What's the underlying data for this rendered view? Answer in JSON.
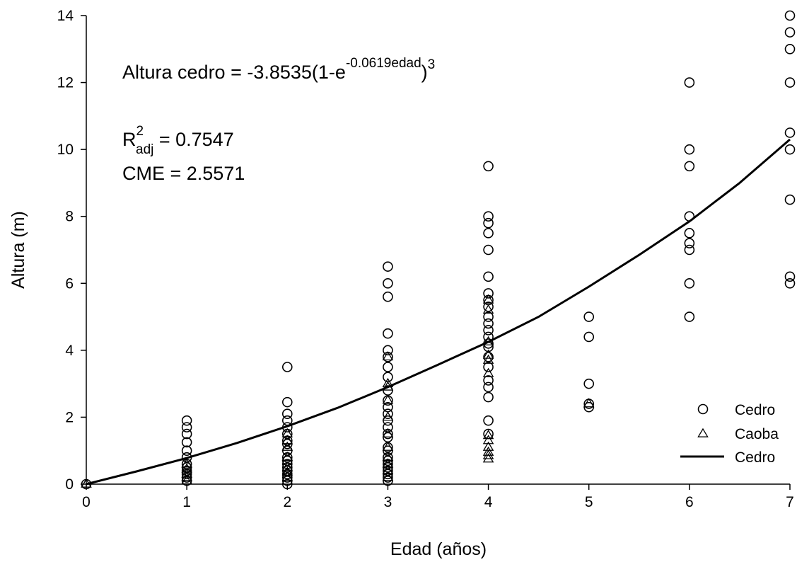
{
  "chart_data": {
    "type": "scatter",
    "title": "",
    "xlabel": "Edad (años)",
    "ylabel": "Altura (m)",
    "xlim": [
      0,
      7
    ],
    "ylim": [
      0,
      14
    ],
    "xticks": [
      "0",
      "1",
      "2",
      "3",
      "4",
      "5",
      "6",
      "7"
    ],
    "yticks": [
      "0",
      "2",
      "4",
      "6",
      "8",
      "10",
      "12",
      "14"
    ],
    "grid": false,
    "legend_position": "bottom-right",
    "annotations": {
      "equation_prefix": "Altura cedro = -3.8535(1-e",
      "equation_exponent": "-0.0619edad",
      "equation_close": ")",
      "equation_power": "3",
      "r2_base": "R",
      "r2_sup": "2",
      "r2_sub": "adj",
      "r2_value": " = 0.7547",
      "cme": "CME = 2.5571"
    },
    "series": [
      {
        "name": "Cedro",
        "marker": "circle",
        "points": [
          [
            0,
            0
          ],
          [
            1,
            0.1
          ],
          [
            1,
            0.2
          ],
          [
            1,
            0.3
          ],
          [
            1,
            0.4
          ],
          [
            1,
            0.5
          ],
          [
            1,
            0.6
          ],
          [
            1,
            0.8
          ],
          [
            1,
            1.0
          ],
          [
            1,
            1.25
          ],
          [
            1,
            1.5
          ],
          [
            1,
            1.7
          ],
          [
            1,
            1.9
          ],
          [
            2,
            0.0
          ],
          [
            2,
            0.1
          ],
          [
            2,
            0.2
          ],
          [
            2,
            0.3
          ],
          [
            2,
            0.4
          ],
          [
            2,
            0.5
          ],
          [
            2,
            0.6
          ],
          [
            2,
            0.7
          ],
          [
            2,
            0.8
          ],
          [
            2,
            1.0
          ],
          [
            2,
            1.2
          ],
          [
            2,
            1.3
          ],
          [
            2,
            1.5
          ],
          [
            2,
            1.7
          ],
          [
            2,
            1.9
          ],
          [
            2,
            2.1
          ],
          [
            2,
            2.45
          ],
          [
            2,
            3.5
          ],
          [
            3,
            0.1
          ],
          [
            3,
            0.2
          ],
          [
            3,
            0.3
          ],
          [
            3,
            0.4
          ],
          [
            3,
            0.5
          ],
          [
            3,
            0.6
          ],
          [
            3,
            0.7
          ],
          [
            3,
            0.8
          ],
          [
            3,
            1.0
          ],
          [
            3,
            1.1
          ],
          [
            3,
            1.4
          ],
          [
            3,
            1.5
          ],
          [
            3,
            1.7
          ],
          [
            3,
            1.9
          ],
          [
            3,
            2.1
          ],
          [
            3,
            2.3
          ],
          [
            3,
            2.5
          ],
          [
            3,
            2.8
          ],
          [
            3,
            3.2
          ],
          [
            3,
            3.5
          ],
          [
            3,
            3.8
          ],
          [
            3,
            4.0
          ],
          [
            3,
            4.5
          ],
          [
            3,
            5.6
          ],
          [
            3,
            6.0
          ],
          [
            3,
            6.5
          ],
          [
            4,
            1.5
          ],
          [
            4,
            1.9
          ],
          [
            4,
            2.6
          ],
          [
            4,
            2.9
          ],
          [
            4,
            3.1
          ],
          [
            4,
            3.5
          ],
          [
            4,
            3.8
          ],
          [
            4,
            4.1
          ],
          [
            4,
            4.2
          ],
          [
            4,
            4.4
          ],
          [
            4,
            4.6
          ],
          [
            4,
            4.8
          ],
          [
            4,
            5.0
          ],
          [
            4,
            5.3
          ],
          [
            4,
            5.5
          ],
          [
            4,
            5.7
          ],
          [
            4,
            6.2
          ],
          [
            4,
            7.0
          ],
          [
            4,
            7.5
          ],
          [
            4,
            7.8
          ],
          [
            4,
            8.0
          ],
          [
            4,
            9.5
          ],
          [
            5,
            2.3
          ],
          [
            5,
            2.4
          ],
          [
            5,
            3.0
          ],
          [
            5,
            4.4
          ],
          [
            5,
            5.0
          ],
          [
            6,
            5.0
          ],
          [
            6,
            6.0
          ],
          [
            6,
            7.0
          ],
          [
            6,
            7.2
          ],
          [
            6,
            7.5
          ],
          [
            6,
            8.0
          ],
          [
            6,
            9.5
          ],
          [
            6,
            10.0
          ],
          [
            6,
            12.0
          ],
          [
            7,
            6.0
          ],
          [
            7,
            6.2
          ],
          [
            7,
            8.5
          ],
          [
            7,
            10.0
          ],
          [
            7,
            10.5
          ],
          [
            7,
            12.0
          ],
          [
            7,
            13.0
          ],
          [
            7,
            13.5
          ],
          [
            7,
            14.0
          ]
        ]
      },
      {
        "name": "Caoba",
        "marker": "triangle",
        "points": [
          [
            0,
            0
          ],
          [
            1,
            0.1
          ],
          [
            1,
            0.2
          ],
          [
            1,
            0.3
          ],
          [
            1,
            0.45
          ],
          [
            1,
            0.6
          ],
          [
            2,
            0.2
          ],
          [
            2,
            0.35
          ],
          [
            2,
            0.5
          ],
          [
            2,
            0.8
          ],
          [
            2,
            1.1
          ],
          [
            2,
            1.3
          ],
          [
            2,
            1.5
          ],
          [
            3,
            0.2
          ],
          [
            3,
            0.4
          ],
          [
            3,
            0.6
          ],
          [
            3,
            0.8
          ],
          [
            3,
            1.1
          ],
          [
            3,
            1.5
          ],
          [
            3,
            2.0
          ],
          [
            3,
            2.5
          ],
          [
            3,
            2.9
          ],
          [
            3,
            3.0
          ],
          [
            3,
            3.8
          ],
          [
            4,
            0.75
          ],
          [
            4,
            0.85
          ],
          [
            4,
            0.95
          ],
          [
            4,
            1.1
          ],
          [
            4,
            1.3
          ],
          [
            4,
            1.45
          ],
          [
            4,
            3.3
          ],
          [
            4,
            3.7
          ],
          [
            4,
            3.85
          ],
          [
            4,
            4.25
          ],
          [
            4,
            5.2
          ],
          [
            4,
            5.5
          ],
          [
            5,
            2.4
          ]
        ]
      },
      {
        "name": "Cedro",
        "marker": "line",
        "x": [
          0,
          0.5,
          1,
          1.5,
          2,
          2.5,
          3,
          3.5,
          4,
          4.5,
          5,
          5.5,
          6,
          6.5,
          7
        ],
        "y": [
          0,
          0.38,
          0.78,
          1.23,
          1.73,
          2.28,
          2.9,
          3.57,
          4.25,
          5.0,
          5.9,
          6.85,
          7.85,
          9.0,
          10.3
        ]
      }
    ]
  }
}
